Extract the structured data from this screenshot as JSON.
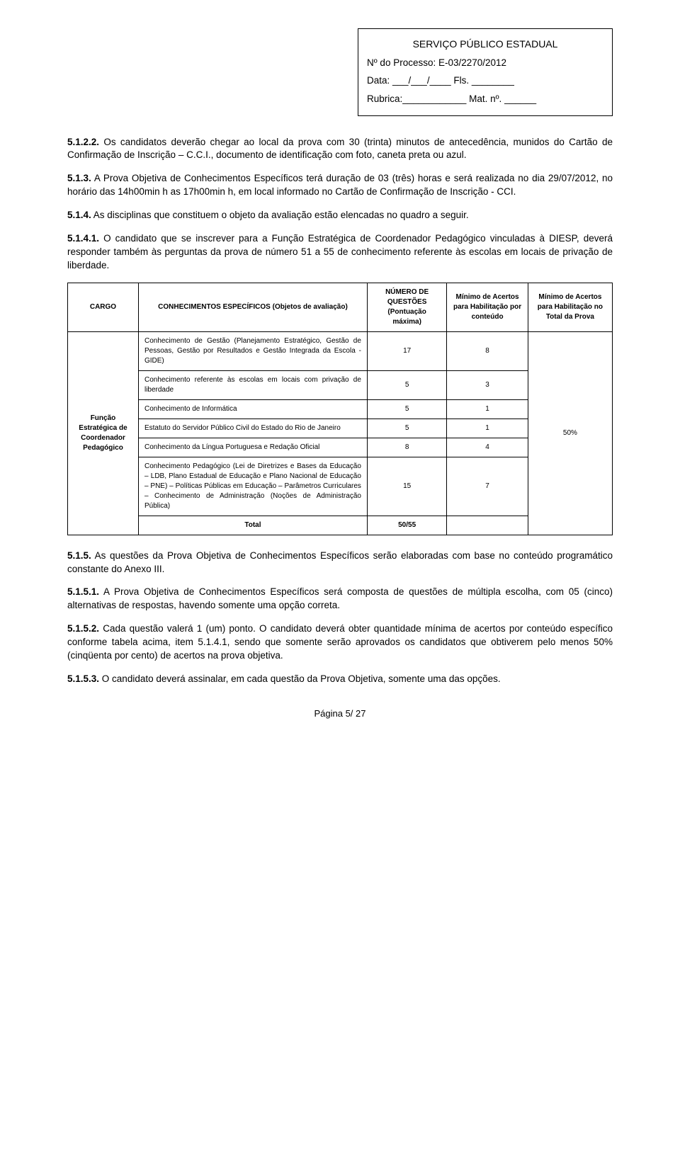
{
  "header": {
    "title": "SERVIÇO PÚBLICO ESTADUAL",
    "processo": "Nº do Processo: E-03/2270/2012",
    "data": "Data: ___/___/____        Fls. ________",
    "rubrica": "Rubrica:____________   Mat. nº. ______"
  },
  "p1": {
    "num": "5.1.2.2.",
    "text": " Os candidatos deverão chegar ao local da prova com 30 (trinta) minutos de antecedência, munidos do Cartão de Confirmação de Inscrição – C.C.I., documento de identificação com foto, caneta preta ou azul."
  },
  "p2": {
    "num": "5.1.3.",
    "text": " A Prova Objetiva de Conhecimentos Específicos terá duração de 03 (três) horas e será realizada no dia 29/07/2012, no horário das 14h00min h as 17h00min h, em local informado no Cartão de Confirmação de Inscrição - CCI."
  },
  "p3": {
    "num": "5.1.4.",
    "text": " As disciplinas que constituem o objeto da avaliação estão elencadas no quadro a seguir."
  },
  "p4": {
    "num": "5.1.4.1.",
    "text": " O candidato que se inscrever para a Função Estratégica de Coordenador Pedagógico vinculadas à DIESP, deverá responder também às perguntas da prova de número 51 a 55 de conhecimento referente às escolas em locais de privação de liberdade."
  },
  "table": {
    "headers": {
      "cargo": "CARGO",
      "conhec": "CONHECIMENTOS ESPECÍFICOS (Objetos de avaliação)",
      "numq": "NÚMERO DE QUESTÕES (Pontuação máxima)",
      "min1": "Mínimo de Acertos para Habilitação por conteúdo",
      "min2": "Mínimo de Acertos para Habilitação no Total da Prova"
    },
    "cargo": "Função Estratégica de Coordenador Pedagógico",
    "rows": [
      {
        "desc": "Conhecimento de Gestão (Planejamento Estratégico, Gestão de Pessoas, Gestão por Resultados e Gestão Integrada da Escola - GIDE)",
        "q": "17",
        "m": "8"
      },
      {
        "desc": "Conhecimento referente às escolas em locais com privação de liberdade",
        "q": "5",
        "m": "3"
      },
      {
        "desc": "Conhecimento de Informática",
        "q": "5",
        "m": "1"
      },
      {
        "desc": "Estatuto do Servidor Público Civil do Estado do Rio de Janeiro",
        "q": "5",
        "m": "1"
      },
      {
        "desc": "Conhecimento da Língua Portuguesa e Redação Oficial",
        "q": "8",
        "m": "4"
      },
      {
        "desc": "Conhecimento Pedagógico (Lei de Diretrizes e Bases da Educação – LDB, Plano Estadual de Educação e Plano Nacional de Educação – PNE) – Políticas Públicas em Educação – Parâmetros Curriculares – Conhecimento de Administração (Noções de Administração Pública)",
        "q": "15",
        "m": "7"
      }
    ],
    "totalLabel": "Total",
    "totalQ": "50/55",
    "min2val": "50%"
  },
  "p5": {
    "num": "5.1.5.",
    "text": " As questões da Prova Objetiva de Conhecimentos Específicos serão elaboradas com base no conteúdo programático constante do Anexo III."
  },
  "p6": {
    "num": "5.1.5.1.",
    "text": " A Prova Objetiva de Conhecimentos Específicos será composta de questões de múltipla escolha, com 05 (cinco) alternativas de respostas, havendo somente uma opção correta."
  },
  "p7": {
    "num": "5.1.5.2.",
    "text": " Cada questão valerá 1 (um) ponto. O candidato deverá obter quantidade mínima de acertos por conteúdo específico conforme tabela acima, item 5.1.4.1, sendo que somente serão aprovados os candidatos que obtiverem pelo menos 50% (cinqüenta por cento) de acertos na prova objetiva."
  },
  "p8": {
    "num": "5.1.5.3.",
    "text": " O candidato deverá assinalar, em cada questão da Prova Objetiva, somente uma das opções."
  },
  "footer": "Página 5/ 27"
}
